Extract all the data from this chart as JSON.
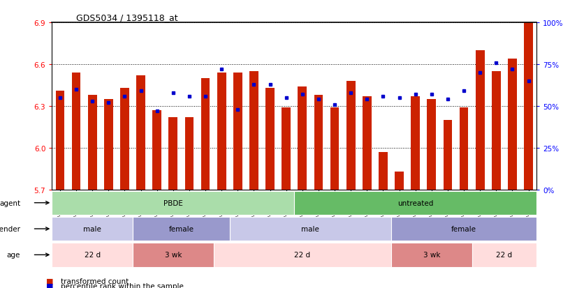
{
  "title": "GDS5034 / 1395118_at",
  "samples": [
    "GSM796783",
    "GSM796784",
    "GSM796785",
    "GSM796786",
    "GSM796787",
    "GSM796806",
    "GSM796807",
    "GSM796808",
    "GSM796809",
    "GSM796810",
    "GSM796796",
    "GSM796797",
    "GSM796798",
    "GSM796799",
    "GSM796800",
    "GSM796781",
    "GSM796788",
    "GSM796789",
    "GSM796790",
    "GSM796791",
    "GSM796801",
    "GSM796802",
    "GSM796803",
    "GSM796804",
    "GSM796805",
    "GSM796782",
    "GSM796792",
    "GSM796793",
    "GSM796794",
    "GSM796795"
  ],
  "bar_values": [
    6.41,
    6.54,
    6.38,
    6.35,
    6.43,
    6.52,
    6.27,
    6.22,
    6.22,
    6.5,
    6.54,
    6.54,
    6.55,
    6.43,
    6.29,
    6.44,
    6.38,
    6.29,
    6.48,
    6.37,
    5.97,
    5.83,
    6.37,
    6.35,
    6.2,
    6.29,
    6.7,
    6.55,
    6.64,
    6.9
  ],
  "percentile_values_pct": [
    55,
    60,
    53,
    52,
    56,
    59,
    47,
    58,
    56,
    56,
    72,
    48,
    63,
    63,
    55,
    57,
    54,
    51,
    58,
    54,
    56,
    55,
    57,
    57,
    54,
    59,
    70,
    76,
    72,
    65
  ],
  "ymin": 5.7,
  "ymax": 6.9,
  "yticks": [
    5.7,
    6.0,
    6.3,
    6.6,
    6.9
  ],
  "right_yticks": [
    0,
    25,
    50,
    75,
    100
  ],
  "bar_color": "#cc2200",
  "dot_color": "#0000cc",
  "agent_groups": [
    {
      "label": "PBDE",
      "start": 0,
      "end": 15,
      "color": "#aaddaa"
    },
    {
      "label": "untreated",
      "start": 15,
      "end": 30,
      "color": "#66bb66"
    }
  ],
  "gender_groups": [
    {
      "label": "male",
      "start": 0,
      "end": 5,
      "color": "#c8c8e8"
    },
    {
      "label": "female",
      "start": 5,
      "end": 11,
      "color": "#9999cc"
    },
    {
      "label": "male",
      "start": 11,
      "end": 21,
      "color": "#c8c8e8"
    },
    {
      "label": "female",
      "start": 21,
      "end": 30,
      "color": "#9999cc"
    }
  ],
  "age_groups": [
    {
      "label": "22 d",
      "start": 0,
      "end": 5,
      "color": "#ffdddd"
    },
    {
      "label": "3 wk",
      "start": 5,
      "end": 10,
      "color": "#dd8888"
    },
    {
      "label": "22 d",
      "start": 10,
      "end": 21,
      "color": "#ffdddd"
    },
    {
      "label": "3 wk",
      "start": 21,
      "end": 26,
      "color": "#dd8888"
    },
    {
      "label": "22 d",
      "start": 26,
      "end": 30,
      "color": "#ffdddd"
    }
  ],
  "row_labels": [
    "agent",
    "gender",
    "age"
  ],
  "legend_items": [
    {
      "label": "transformed count",
      "color": "#cc2200"
    },
    {
      "label": "percentile rank within the sample",
      "color": "#0000cc"
    }
  ],
  "figsize": [
    8.26,
    4.14
  ],
  "dpi": 100
}
